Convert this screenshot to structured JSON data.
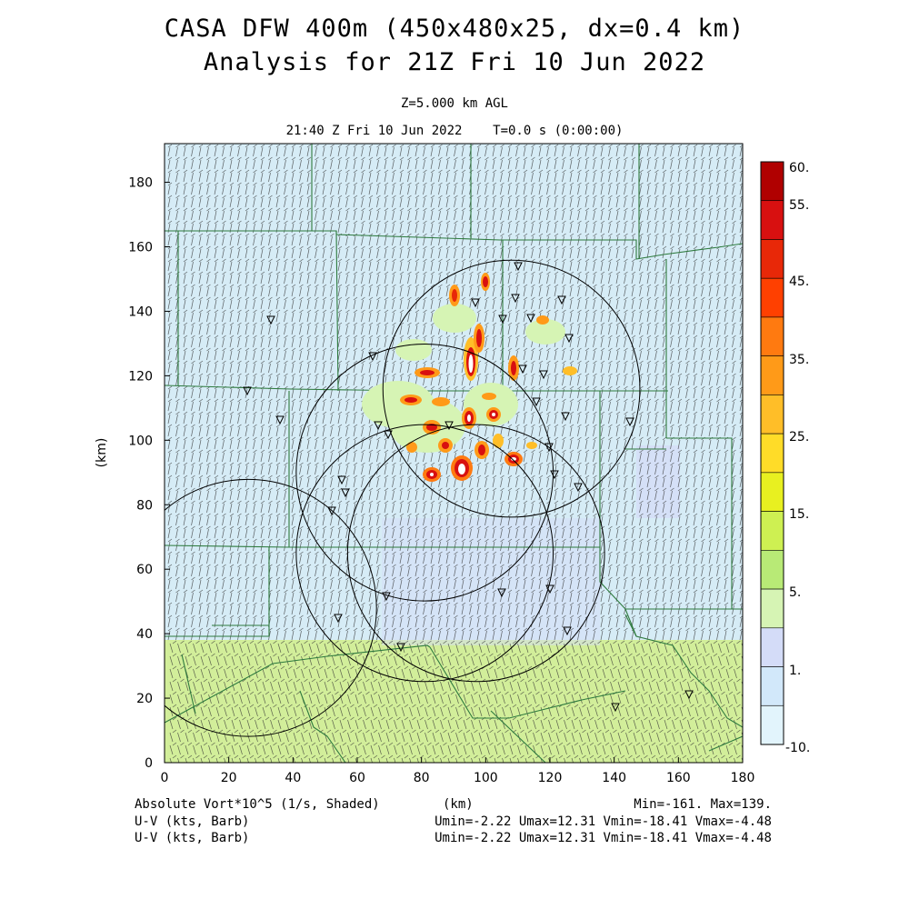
{
  "header": {
    "title_line1": "CASA DFW 400m (450x480x25, dx=0.4 km)",
    "title_line2": "Analysis for 21Z Fri 10 Jun 2022",
    "level": "Z=5.000 km AGL",
    "time": "21:40 Z Fri 10 Jun 2022    T=0.0 s (0:00:00)"
  },
  "axes": {
    "x_label": "(km)",
    "y_label": "(km)",
    "x_ticks": [
      "0",
      "20",
      "40",
      "60",
      "80",
      "100",
      "120",
      "140",
      "160",
      "180"
    ],
    "y_ticks": [
      "0",
      "20",
      "40",
      "60",
      "80",
      "100",
      "120",
      "140",
      "160",
      "180"
    ],
    "x_range": [
      0,
      180
    ],
    "y_range": [
      0,
      192
    ]
  },
  "colorbar": {
    "labels": [
      "60.",
      "55.",
      "45.",
      "35.",
      "25.",
      "15.",
      "5.",
      "1.",
      "-10."
    ],
    "colors": [
      "#b00000",
      "#d81010",
      "#e82808",
      "#ff4000",
      "#ff7a10",
      "#ff9a18",
      "#ffbe28",
      "#ffdc28",
      "#e8f020",
      "#cef052",
      "#b8ea76",
      "#d6f4b4",
      "#d4dcf8",
      "#d2e8fa",
      "#e2f4fc"
    ]
  },
  "footer": {
    "field": "Absolute Vort*10^5 (1/s, Shaded)",
    "xunit": "(km)",
    "minmax": "Min=-161. Max=139.",
    "vec1_label": "U-V (kts, Barb)",
    "vec1_stats": "Umin=-2.22 Umax=12.31 Vmin=-18.41 Vmax=-4.48",
    "vec2_label": "U-V (kts, Barb)",
    "vec2_stats": "Umin=-2.22 Umax=12.31 Vmin=-18.41 Vmax=-4.48"
  },
  "map": {
    "background_color": "#d6ecf6",
    "south_band_color": "#d2ee9a",
    "county_line_color": "#2e7a3e",
    "barb_color": "#333333",
    "ring_color": "#000000",
    "radar_ring_centers_km": [
      [
        26,
        48
      ],
      [
        81,
        65
      ],
      [
        97,
        65
      ],
      [
        81,
        90
      ],
      [
        108,
        116
      ]
    ],
    "radar_ring_radius_km": 40
  }
}
